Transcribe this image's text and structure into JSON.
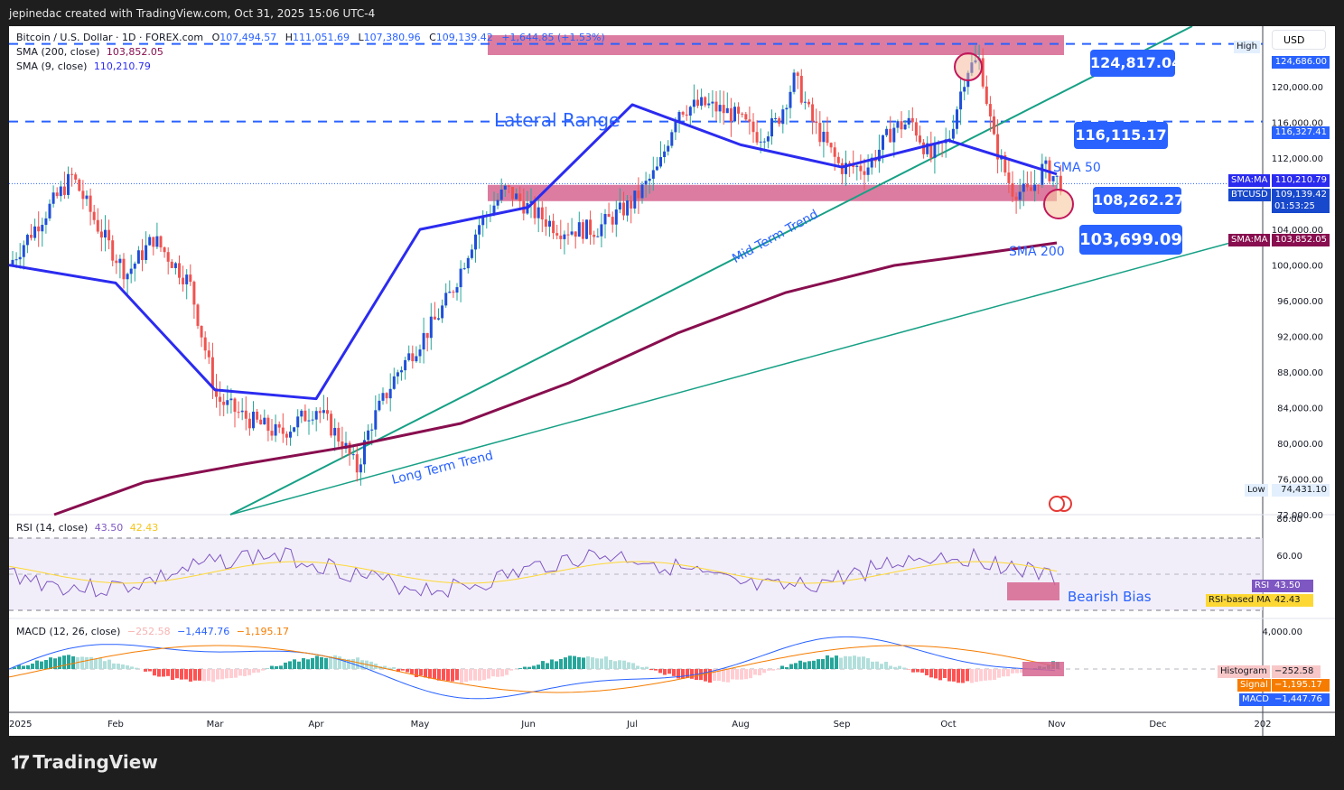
{
  "header": {
    "attribution": "jepinedac created with TradingView.com, Oct 31, 2025 15:06 UTC-4"
  },
  "symbol": {
    "name": "Bitcoin / U.S. Dollar · 1D · FOREX.com",
    "open_label": "O",
    "open": "107,494.57",
    "high_label": "H",
    "high": "111,051.69",
    "low_label": "L",
    "low": "107,380.96",
    "close_label": "C",
    "close": "109,139.42",
    "change": "+1,644.85 (+1.53%)"
  },
  "indicators": {
    "sma200": {
      "label": "SMA (200, close)",
      "value": "103,852.05",
      "color": "#880e4f"
    },
    "sma9": {
      "label": "SMA (9, close)",
      "value": "110,210.79",
      "color": "#2b2bf0"
    },
    "rsi": {
      "label": "RSI (14, close)",
      "value": "43.50",
      "ma_value": "42.43",
      "color": "#7e57c2",
      "ma_color": "#fdd835"
    },
    "macd": {
      "label": "MACD (12, 26, close)",
      "histogram": "−252.58",
      "macd": "−1,447.76",
      "signal": "−1,195.17"
    }
  },
  "price_axis": {
    "currency_button": "USD",
    "ticks": [
      "120,000.00",
      "116,000.00",
      "112,000.00",
      "108,000.00",
      "104,000.00",
      "100,000.00",
      "96,000.00",
      "92,000.00",
      "88,000.00",
      "84,000.00",
      "80,000.00",
      "76,000.00",
      "72,000.00"
    ],
    "high_label": "High",
    "high_value": "124,686.00",
    "low_label": "Low",
    "low_value": "74,431.10",
    "level_tag": "116,327.41",
    "sma9_tag_label": "SMA:MA",
    "sma9_tag_value": "110,210.79",
    "price_tag_label": "BTCUSD",
    "price_tag_value": "109,139.42",
    "countdown": "01:53:25",
    "sma200_tag_label": "SMA:MA",
    "sma200_tag_value": "103,852.05"
  },
  "rsi_axis": {
    "ticks": [
      "80.00",
      "60.00"
    ],
    "rsi_tag_label": "RSI",
    "rsi_tag_value": "43.50",
    "ma_tag_label": "RSI-based MA",
    "ma_tag_value": "42.43"
  },
  "macd_axis": {
    "ticks": [
      "4,000.00"
    ],
    "hist_label": "Histogram",
    "hist_value": "−252.58",
    "signal_label": "Signal",
    "signal_value": "−1,195.17",
    "macd_label": "MACD",
    "macd_value": "−1,447.76"
  },
  "time_axis": {
    "ticks": [
      "2025",
      "Feb",
      "Mar",
      "Apr",
      "May",
      "Jun",
      "Jul",
      "Aug",
      "Sep",
      "Oct",
      "Nov",
      "Dec",
      "202"
    ]
  },
  "annotations": {
    "lateral_range": "Lateral Range",
    "mid_term_trend": "Mid Term Trend",
    "long_term_trend": "Long Term Trend",
    "sma50": "SMA 50",
    "sma200": "SMA 200",
    "bearish_bias": "Bearish Bias",
    "pill_top": "124,817.04",
    "pill_mid": "116,115.17",
    "pill_support": "108,262.27",
    "pill_sma200": "103,699.09"
  },
  "footer": {
    "brand": "TradingView"
  },
  "colors": {
    "up": "#1e4fd8",
    "up_wick": "#26a69a",
    "down": "#ef5350",
    "zone": "#d6658f",
    "trend": "#16a085",
    "accent": "#2962ff"
  },
  "chart_data": {
    "type": "candlestick",
    "title": "Bitcoin / U.S. Dollar · 1D · FOREX.com",
    "xlabel": "",
    "ylabel": "USD",
    "ylim": [
      72000,
      126000
    ],
    "x": [
      "Jan",
      "Feb",
      "Mar",
      "Apr",
      "May",
      "Jun",
      "Jul",
      "Aug",
      "Sep",
      "Oct",
      "Oct-31"
    ],
    "series": [
      {
        "name": "Close (approx. monthly path)",
        "values": [
          102000,
          96000,
          84000,
          94500,
          104500,
          106000,
          117500,
          108500,
          114000,
          109500,
          109139.42
        ]
      },
      {
        "name": "SMA 9",
        "values": [
          100000,
          98000,
          86000,
          85000,
          104000,
          106500,
          118000,
          113500,
          111000,
          114000,
          110210.79
        ]
      },
      {
        "name": "SMA 200",
        "values": [
          70000,
          76000,
          79500,
          82500,
          87000,
          92000,
          97500,
          101500,
          102500,
          103500,
          103852.05
        ]
      }
    ],
    "levels": {
      "resistance": 124817.04,
      "mid": 116115.17,
      "support": 108262.27,
      "sma200_level": 103699.09,
      "all_time_high": 124686.0,
      "low": 74431.1
    },
    "rsi": {
      "current": 43.5,
      "ma": 42.43,
      "bands": [
        70,
        30
      ]
    },
    "macd": {
      "histogram": -252.58,
      "macd": -1447.76,
      "signal": -1195.17
    }
  }
}
